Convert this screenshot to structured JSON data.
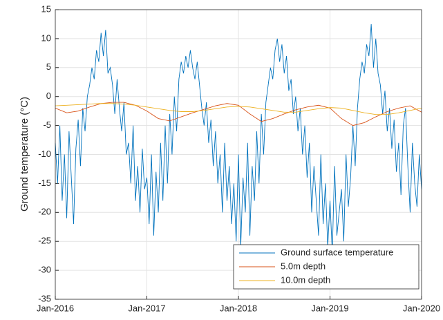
{
  "chart_data": {
    "type": "line",
    "y_label": "Ground temperature (°C)",
    "xlim": [
      2016,
      2020
    ],
    "xticks": [
      {
        "value": 2016,
        "label": "Jan-2016"
      },
      {
        "value": 2017,
        "label": "Jan-2017"
      },
      {
        "value": 2018,
        "label": "Jan-2018"
      },
      {
        "value": 2019,
        "label": "Jan-2019"
      },
      {
        "value": 2020,
        "label": "Jan-2020"
      }
    ],
    "ylim": [
      -35,
      15
    ],
    "yticks": [
      -35,
      -30,
      -25,
      -20,
      -15,
      -10,
      -5,
      0,
      5,
      10,
      15
    ],
    "grid": true,
    "legend": "lower right",
    "series": [
      {
        "name": "Ground surface temperature",
        "color": "#0072bd",
        "x": [
          2016,
          2016.025,
          2016.05,
          2016.075,
          2016.1,
          2016.125,
          2016.15,
          2016.175,
          2016.2,
          2016.225,
          2016.25,
          2016.275,
          2016.3,
          2016.325,
          2016.35,
          2016.375,
          2016.4,
          2016.425,
          2016.45,
          2016.475,
          2016.5,
          2016.525,
          2016.55,
          2016.575,
          2016.6,
          2016.625,
          2016.65,
          2016.675,
          2016.7,
          2016.725,
          2016.75,
          2016.775,
          2016.8,
          2016.825,
          2016.85,
          2016.875,
          2016.9,
          2016.925,
          2016.95,
          2016.975,
          2017,
          2017.025,
          2017.05,
          2017.075,
          2017.1,
          2017.125,
          2017.15,
          2017.175,
          2017.2,
          2017.225,
          2017.25,
          2017.275,
          2017.3,
          2017.325,
          2017.35,
          2017.375,
          2017.4,
          2017.425,
          2017.45,
          2017.475,
          2017.5,
          2017.525,
          2017.55,
          2017.575,
          2017.6,
          2017.625,
          2017.65,
          2017.675,
          2017.7,
          2017.725,
          2017.75,
          2017.775,
          2017.8,
          2017.825,
          2017.85,
          2017.875,
          2017.9,
          2017.925,
          2017.95,
          2017.975,
          2018,
          2018.025,
          2018.05,
          2018.075,
          2018.1,
          2018.125,
          2018.15,
          2018.175,
          2018.2,
          2018.225,
          2018.25,
          2018.275,
          2018.3,
          2018.325,
          2018.35,
          2018.375,
          2018.4,
          2018.425,
          2018.45,
          2018.475,
          2018.5,
          2018.525,
          2018.55,
          2018.575,
          2018.6,
          2018.625,
          2018.65,
          2018.675,
          2018.7,
          2018.725,
          2018.75,
          2018.775,
          2018.8,
          2018.825,
          2018.85,
          2018.875,
          2018.9,
          2018.925,
          2018.95,
          2018.975,
          2019,
          2019.025,
          2019.05,
          2019.075,
          2019.1,
          2019.125,
          2019.15,
          2019.175,
          2019.2,
          2019.225,
          2019.25,
          2019.275,
          2019.3,
          2019.325,
          2019.35,
          2019.375,
          2019.4,
          2019.425,
          2019.45,
          2019.475,
          2019.5,
          2019.525,
          2019.55,
          2019.575,
          2019.6,
          2019.625,
          2019.65,
          2019.675,
          2019.7,
          2019.725,
          2019.75,
          2019.775,
          2019.8,
          2019.825,
          2019.85,
          2019.875,
          2019.9,
          2019.925,
          2019.95,
          2019.975,
          2020
        ],
        "values": [
          -8,
          -15,
          -5,
          -18,
          -10,
          -21,
          -6,
          -14,
          -22,
          -9,
          -4,
          -12,
          -2,
          -6,
          0,
          2,
          5,
          3,
          8,
          6,
          11,
          7,
          11.5,
          4,
          5,
          2,
          -3,
          3,
          -2,
          -6,
          -1,
          -10,
          -8,
          -15,
          -5,
          -18,
          -12,
          -20,
          -9,
          -16,
          -14,
          -22,
          -10,
          -24,
          -13,
          -20,
          -8,
          -18,
          -5,
          -15,
          -3,
          -10,
          0,
          -6,
          3,
          6,
          4,
          7,
          5,
          8,
          5,
          3,
          6,
          2,
          -2,
          -5,
          -1,
          -8,
          -4,
          -12,
          -6,
          -15,
          -10,
          -20,
          -8,
          -18,
          -12,
          -22,
          -15,
          -25,
          -10,
          -26,
          -14,
          -20,
          -8,
          -24,
          -12,
          -18,
          -6,
          -15,
          -3,
          -10,
          -1,
          2,
          5,
          3,
          8,
          10,
          6,
          9,
          4,
          7,
          1,
          3,
          -3,
          0,
          -6,
          -2,
          -10,
          -5,
          -14,
          -8,
          -20,
          -12,
          -18,
          -24,
          -10,
          -22,
          -15,
          -26,
          -18,
          -27,
          -12,
          -24,
          -20,
          -16,
          -25,
          -10,
          -19,
          -14,
          -5,
          -12,
          -2,
          3,
          6,
          4,
          9,
          7,
          12.5,
          5,
          10,
          4,
          2,
          -3,
          1,
          -6,
          -2,
          -9,
          -4,
          -13,
          -8,
          -17,
          -5,
          -2,
          -12,
          -20,
          -8,
          -15,
          -19,
          -10,
          -16
        ]
      },
      {
        "name": "5.0m depth",
        "color": "#d95319",
        "x": [
          2016,
          2016.125,
          2016.25,
          2016.375,
          2016.5,
          2016.625,
          2016.75,
          2016.875,
          2017,
          2017.125,
          2017.25,
          2017.375,
          2017.5,
          2017.625,
          2017.75,
          2017.875,
          2018,
          2018.125,
          2018.25,
          2018.375,
          2018.5,
          2018.625,
          2018.75,
          2018.875,
          2019,
          2019.125,
          2019.25,
          2019.375,
          2019.5,
          2019.625,
          2019.75,
          2019.875,
          2020
        ],
        "values": [
          -2,
          -2.8,
          -2.5,
          -1.8,
          -1.2,
          -1,
          -1,
          -1.5,
          -2.5,
          -3.8,
          -4.2,
          -3.5,
          -2.8,
          -2.2,
          -1.6,
          -1.2,
          -1.5,
          -3,
          -4.3,
          -3.8,
          -3,
          -2.3,
          -1.8,
          -1.5,
          -2,
          -3.8,
          -5,
          -4.5,
          -3.5,
          -2.6,
          -2,
          -1.6,
          -2.7
        ]
      },
      {
        "name": "10.0m depth",
        "color": "#edb120",
        "x": [
          2016,
          2016.125,
          2016.25,
          2016.375,
          2016.5,
          2016.625,
          2016.75,
          2016.875,
          2017,
          2017.125,
          2017.25,
          2017.375,
          2017.5,
          2017.625,
          2017.75,
          2017.875,
          2018,
          2018.125,
          2018.25,
          2018.375,
          2018.5,
          2018.625,
          2018.75,
          2018.875,
          2019,
          2019.125,
          2019.25,
          2019.375,
          2019.5,
          2019.625,
          2019.75,
          2019.875,
          2020
        ],
        "values": [
          -1.6,
          -1.5,
          -1.4,
          -1.3,
          -1.2,
          -1.2,
          -1.3,
          -1.5,
          -1.8,
          -2.1,
          -2.4,
          -2.6,
          -2.6,
          -2.4,
          -2.1,
          -1.8,
          -1.7,
          -1.8,
          -2.1,
          -2.4,
          -2.7,
          -2.7,
          -2.4,
          -2.1,
          -1.9,
          -2,
          -2.4,
          -2.8,
          -3.1,
          -3.1,
          -2.8,
          -2.4,
          -2
        ]
      }
    ]
  }
}
